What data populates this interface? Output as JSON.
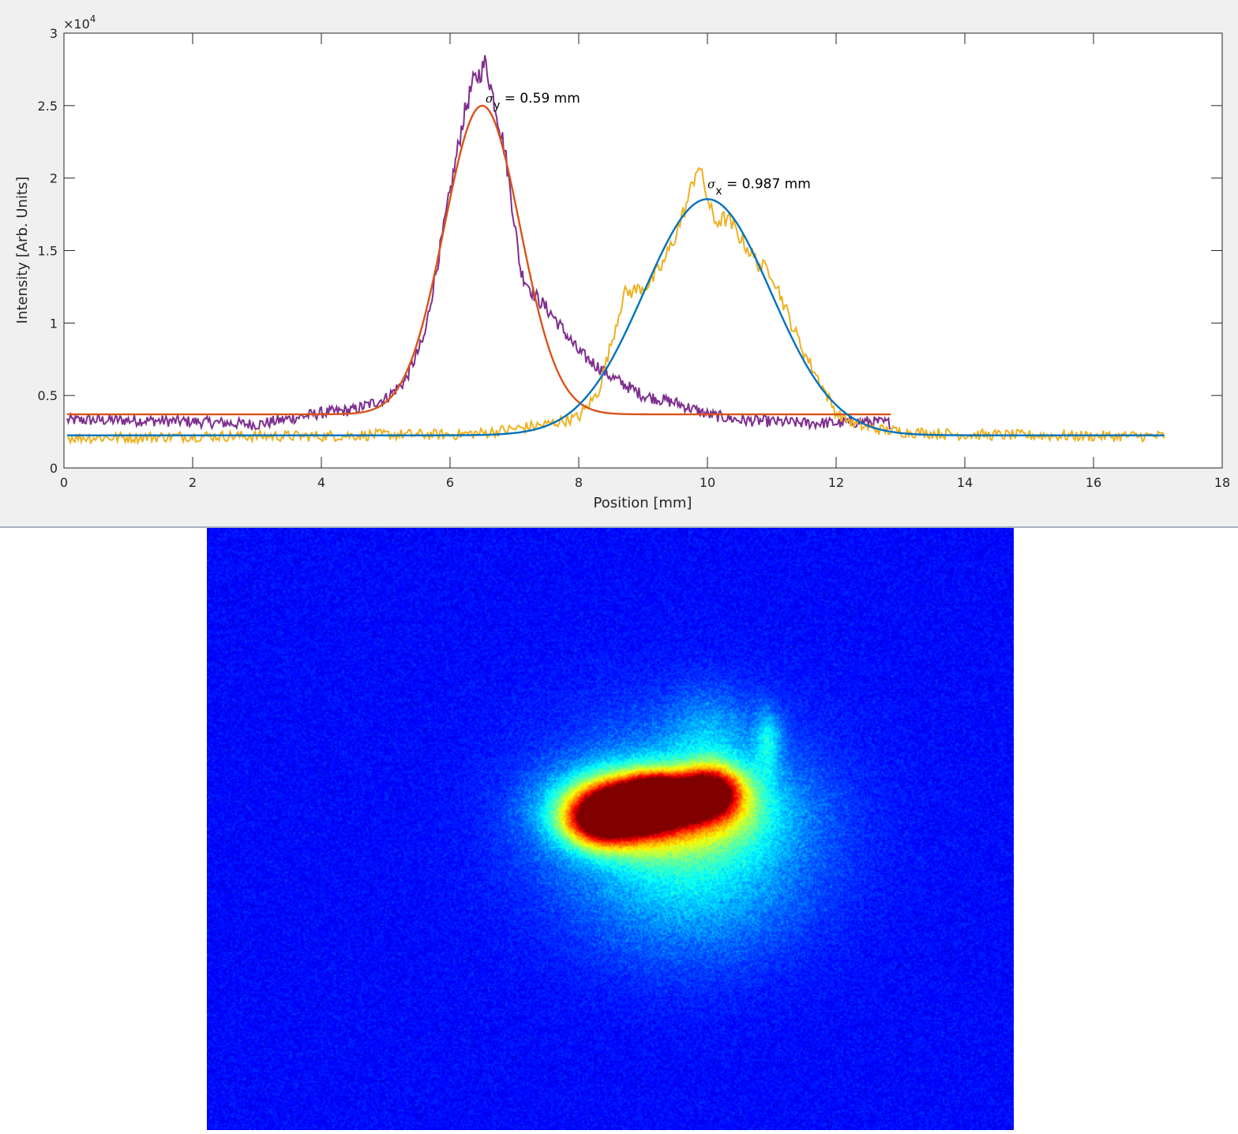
{
  "chart_data": {
    "type": "line",
    "xlabel": "Position [mm]",
    "ylabel": "Intensity [Arb. Units]",
    "xlim": [
      0,
      18
    ],
    "ylim": [
      0,
      30000
    ],
    "x_ticks": [
      0,
      2,
      4,
      6,
      8,
      10,
      12,
      14,
      16,
      18
    ],
    "y_ticks": [
      0,
      5000,
      10000,
      15000,
      20000,
      25000,
      30000
    ],
    "y_tick_labels": [
      "0",
      "0.5",
      "1",
      "1.5",
      "2",
      "2.5",
      "3"
    ],
    "y_exponent_label": "×10",
    "y_exponent_power": "4",
    "grid": false,
    "box": true,
    "series": [
      {
        "role": "y-fit",
        "color": "#D95319",
        "model": "gaussian",
        "mean": 6.5,
        "sigma": 0.59,
        "amplitude": 21300,
        "offset": 3700,
        "x_range": [
          0.05,
          12.85
        ]
      },
      {
        "role": "x-fit",
        "color": "#0072BD",
        "model": "gaussian",
        "mean": 10.0,
        "sigma": 0.987,
        "amplitude": 16300,
        "offset": 2250,
        "x_range": [
          0.05,
          17.1
        ]
      },
      {
        "role": "y-profile",
        "color": "#7E2F8E",
        "x": [
          0.05,
          1.0,
          2.0,
          3.0,
          4.0,
          4.5,
          5.0,
          5.3,
          5.6,
          5.8,
          6.0,
          6.2,
          6.35,
          6.5,
          6.55,
          6.7,
          6.85,
          7.0,
          7.1,
          7.3,
          7.6,
          8.0,
          8.5,
          9.0,
          9.5,
          10.0,
          10.5,
          11.0,
          11.5,
          12.0,
          12.5,
          12.85
        ],
        "y": [
          3300,
          3300,
          3200,
          3000,
          3800,
          4000,
          4800,
          6000,
          9000,
          14000,
          19000,
          24000,
          26500,
          27500,
          28000,
          25000,
          22000,
          17000,
          13500,
          12000,
          10500,
          8000,
          6300,
          5000,
          4500,
          3700,
          3300,
          3200,
          3100,
          3100,
          3200,
          3100
        ]
      },
      {
        "role": "x-profile",
        "color": "#EDB120",
        "x": [
          0.05,
          1.0,
          2.0,
          3.0,
          4.0,
          5.0,
          6.0,
          6.5,
          7.0,
          7.5,
          8.0,
          8.3,
          8.5,
          8.7,
          8.9,
          9.1,
          9.3,
          9.5,
          9.7,
          9.85,
          9.95,
          10.1,
          10.3,
          10.5,
          10.8,
          11.0,
          11.3,
          11.5,
          11.8,
          12.0,
          12.3,
          12.6,
          13.0,
          13.5,
          14.0,
          15.0,
          16.0,
          17.1
        ],
        "y": [
          2100,
          2100,
          2200,
          2200,
          2200,
          2300,
          2300,
          2400,
          2700,
          3000,
          3500,
          5200,
          8500,
          12000,
          12300,
          12700,
          14000,
          16000,
          18500,
          21000,
          19500,
          17000,
          17200,
          16000,
          14000,
          13500,
          10000,
          8000,
          5500,
          3800,
          3000,
          2700,
          2500,
          2400,
          2300,
          2250,
          2200,
          2200
        ]
      }
    ],
    "annotations": [
      {
        "symbol": "σ",
        "subscript": "y",
        "text": " = 0.59 mm",
        "x": 6.55,
        "y": 25200
      },
      {
        "symbol": "σ",
        "subscript": "x",
        "text": " = 0.987 mm",
        "x": 10.0,
        "y": 19300
      }
    ]
  },
  "beam_image": {
    "colormap": "jet",
    "background_color": "#0a0ae6"
  }
}
